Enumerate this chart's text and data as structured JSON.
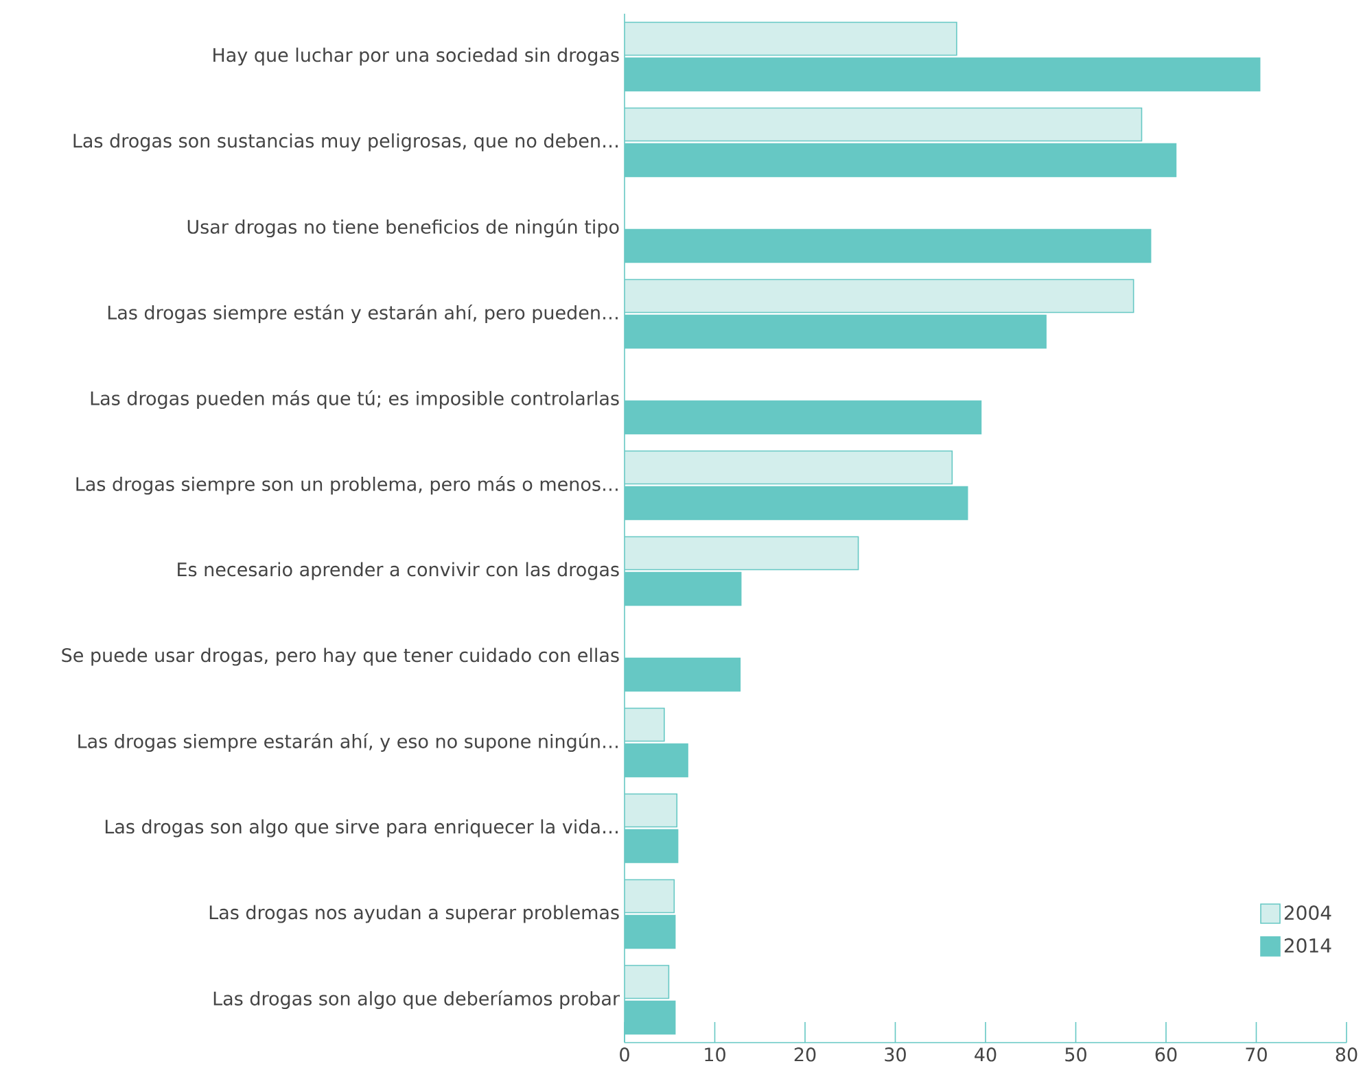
{
  "chart_data": {
    "type": "bar",
    "orientation": "horizontal",
    "categories": [
      "Hay que luchar por una sociedad sin drogas",
      "Las drogas son sustancias muy peligrosas, que no deben…",
      "Usar drogas no tiene beneficios de ningún tipo",
      "Las drogas siempre están y estarán ahí, pero pueden…",
      "Las drogas pueden más que tú; es imposible controlarlas",
      "Las drogas siempre son un problema, pero más o menos…",
      "Es necesario aprender a convivir con las drogas",
      "Se puede usar drogas, pero hay que tener cuidado con ellas",
      "Las drogas siempre estarán ahí, y eso no supone ningún…",
      "Las drogas son algo que sirve para enriquecer la vida…",
      "Las drogas nos ayudan a superar problemas",
      "Las drogas son algo que deberíamos probar"
    ],
    "series": [
      {
        "name": "2004",
        "color": "#d3eeec",
        "values": [
          36.8,
          57.3,
          null,
          56.4,
          null,
          36.3,
          25.9,
          null,
          4.4,
          5.8,
          5.5,
          4.9
        ]
      },
      {
        "name": "2014",
        "color": "#66c8c4",
        "values": [
          70.4,
          61.1,
          58.3,
          46.7,
          39.5,
          38.0,
          12.9,
          12.8,
          7.0,
          5.9,
          5.6,
          5.6
        ]
      }
    ],
    "xlim": [
      0,
      80
    ],
    "xticks": [
      0,
      10,
      20,
      30,
      40,
      50,
      60,
      70,
      80
    ],
    "legend": "bottom right"
  }
}
